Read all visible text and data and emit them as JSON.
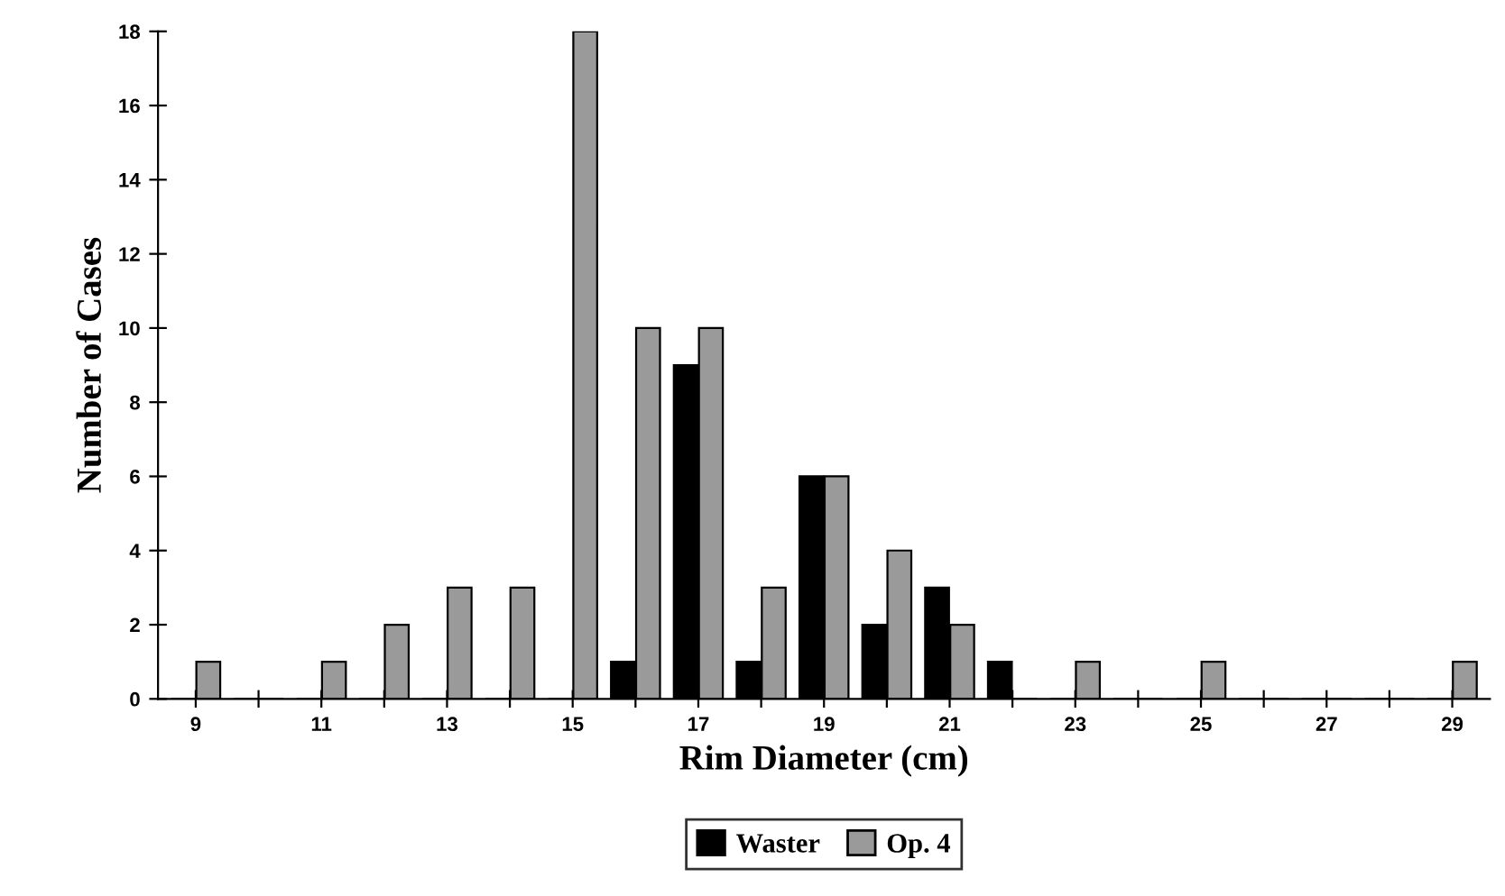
{
  "chart_data": {
    "type": "bar",
    "xlabel": "Rim Diameter (cm)",
    "ylabel": "Number of Cases",
    "categories": [
      "9",
      null,
      "11",
      null,
      "13",
      null,
      "15",
      null,
      "17",
      null,
      "19",
      null,
      "21",
      null,
      "23",
      null,
      "25",
      null,
      "27",
      null,
      "29"
    ],
    "series": [
      {
        "name": "Waster",
        "color": "#000000",
        "values": [
          0,
          0,
          0,
          0,
          0,
          0,
          0,
          1,
          9,
          1,
          6,
          2,
          3,
          1,
          0,
          0,
          0,
          0,
          0,
          0,
          0
        ]
      },
      {
        "name": "Op. 4",
        "color": "#9a9a9a",
        "values": [
          1,
          0,
          1,
          2,
          3,
          3,
          18,
          10,
          10,
          3,
          6,
          4,
          2,
          0,
          1,
          0,
          1,
          0,
          0,
          0,
          1
        ]
      }
    ],
    "ylim": [
      0,
      18
    ],
    "yticks": [
      0,
      2,
      4,
      6,
      8,
      10,
      12,
      14,
      16,
      18
    ],
    "grid": false,
    "legend": "bottom"
  }
}
